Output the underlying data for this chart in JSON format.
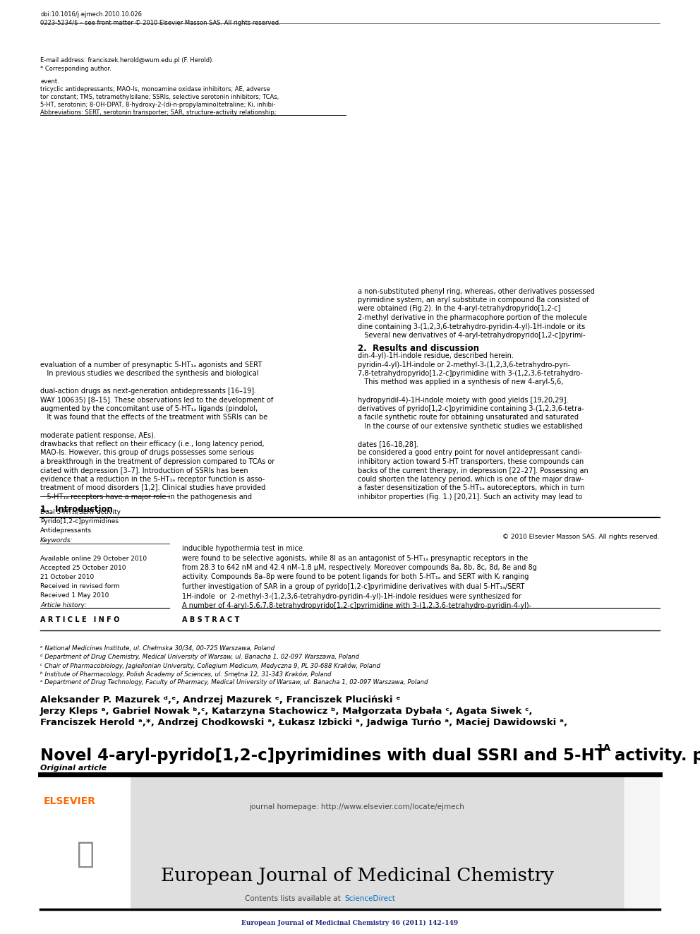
{
  "page_width": 9.92,
  "page_height": 13.23,
  "dpi": 100,
  "background_color": "#ffffff",
  "top_journal_ref": "European Journal of Medicinal Chemistry 46 (2011) 142–149",
  "top_journal_ref_color": "#1a237e",
  "header_bg_color": "#e0e0e0",
  "header_journal_name": "European Journal of Medicinal Chemistry",
  "header_sciencedirect_color": "#0070c0",
  "header_homepage": "journal homepage: http://www.elsevier.com/locate/ejmech",
  "elsevier_color": "#FF6600",
  "article_type": "Original article",
  "footnote_issn": "0223-5234/$ – see front matter © 2010 Elsevier Masson SAS. All rights reserved.",
  "footnote_doi": "doi:10.1016/j.ejmech.2010.10.026"
}
